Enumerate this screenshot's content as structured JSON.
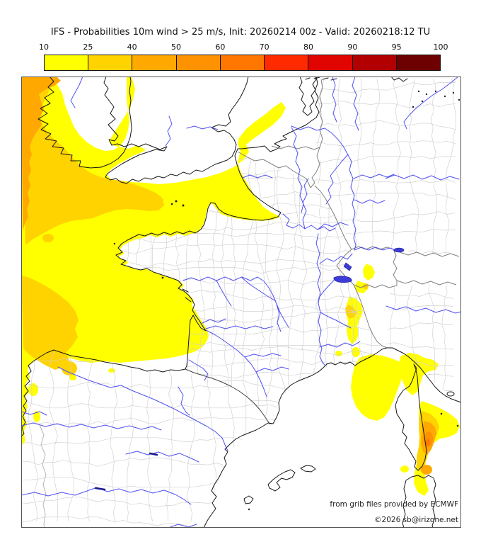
{
  "title": "IFS - Probabilities 10m wind > 25 m/s, Init: 20260214 00z - Valid: 20260218:12 TU",
  "colorbar": {
    "labels": [
      "10",
      "25",
      "40",
      "50",
      "60",
      "70",
      "80",
      "90",
      "95",
      "100"
    ],
    "colors": [
      "#ffff00",
      "#ffd300",
      "#ffa800",
      "#ff9200",
      "#ff7600",
      "#ff2a00",
      "#e00500",
      "#b20000",
      "#6d0000"
    ]
  },
  "map_colors": {
    "prob_10_25": "#ffff00",
    "prob_25_40": "#ffd300",
    "prob_40_50": "#ffa800",
    "prob_50_60": "#ff9200",
    "prob_60_70": "#ff7600",
    "river": "#5050f0",
    "lake": "#3c3cd8",
    "coastline": "#151515",
    "country_border": "#808080",
    "region_border": "#d2d2d2",
    "background": "#ffffff"
  },
  "attribution": {
    "line1": "from grib files provided by ECMWF",
    "line2": "©2026 sb@irizone.net"
  }
}
